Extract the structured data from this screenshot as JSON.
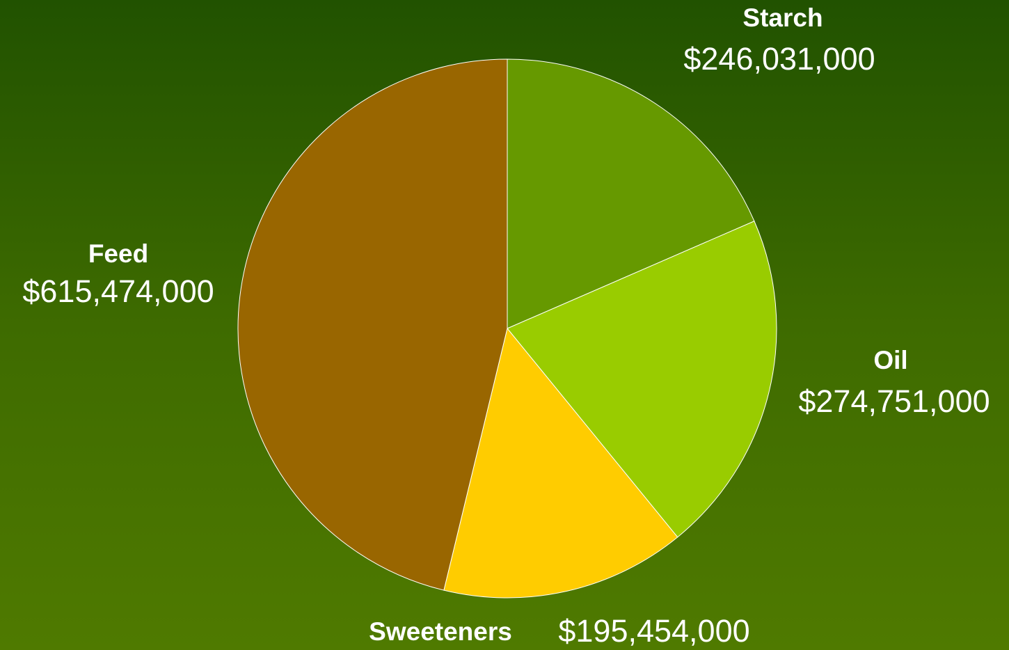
{
  "chart_data": {
    "type": "pie",
    "categories": [
      "Starch",
      "Oil",
      "Sweeteners",
      "Feed"
    ],
    "values": [
      246031000,
      274751000,
      195454000,
      615474000
    ],
    "value_labels": [
      "$246,031,000",
      "$274,751,000",
      "$195,454,000",
      "$615,474,000"
    ],
    "colors": [
      "#669900",
      "#99cc00",
      "#ffcc00",
      "#996600"
    ]
  }
}
